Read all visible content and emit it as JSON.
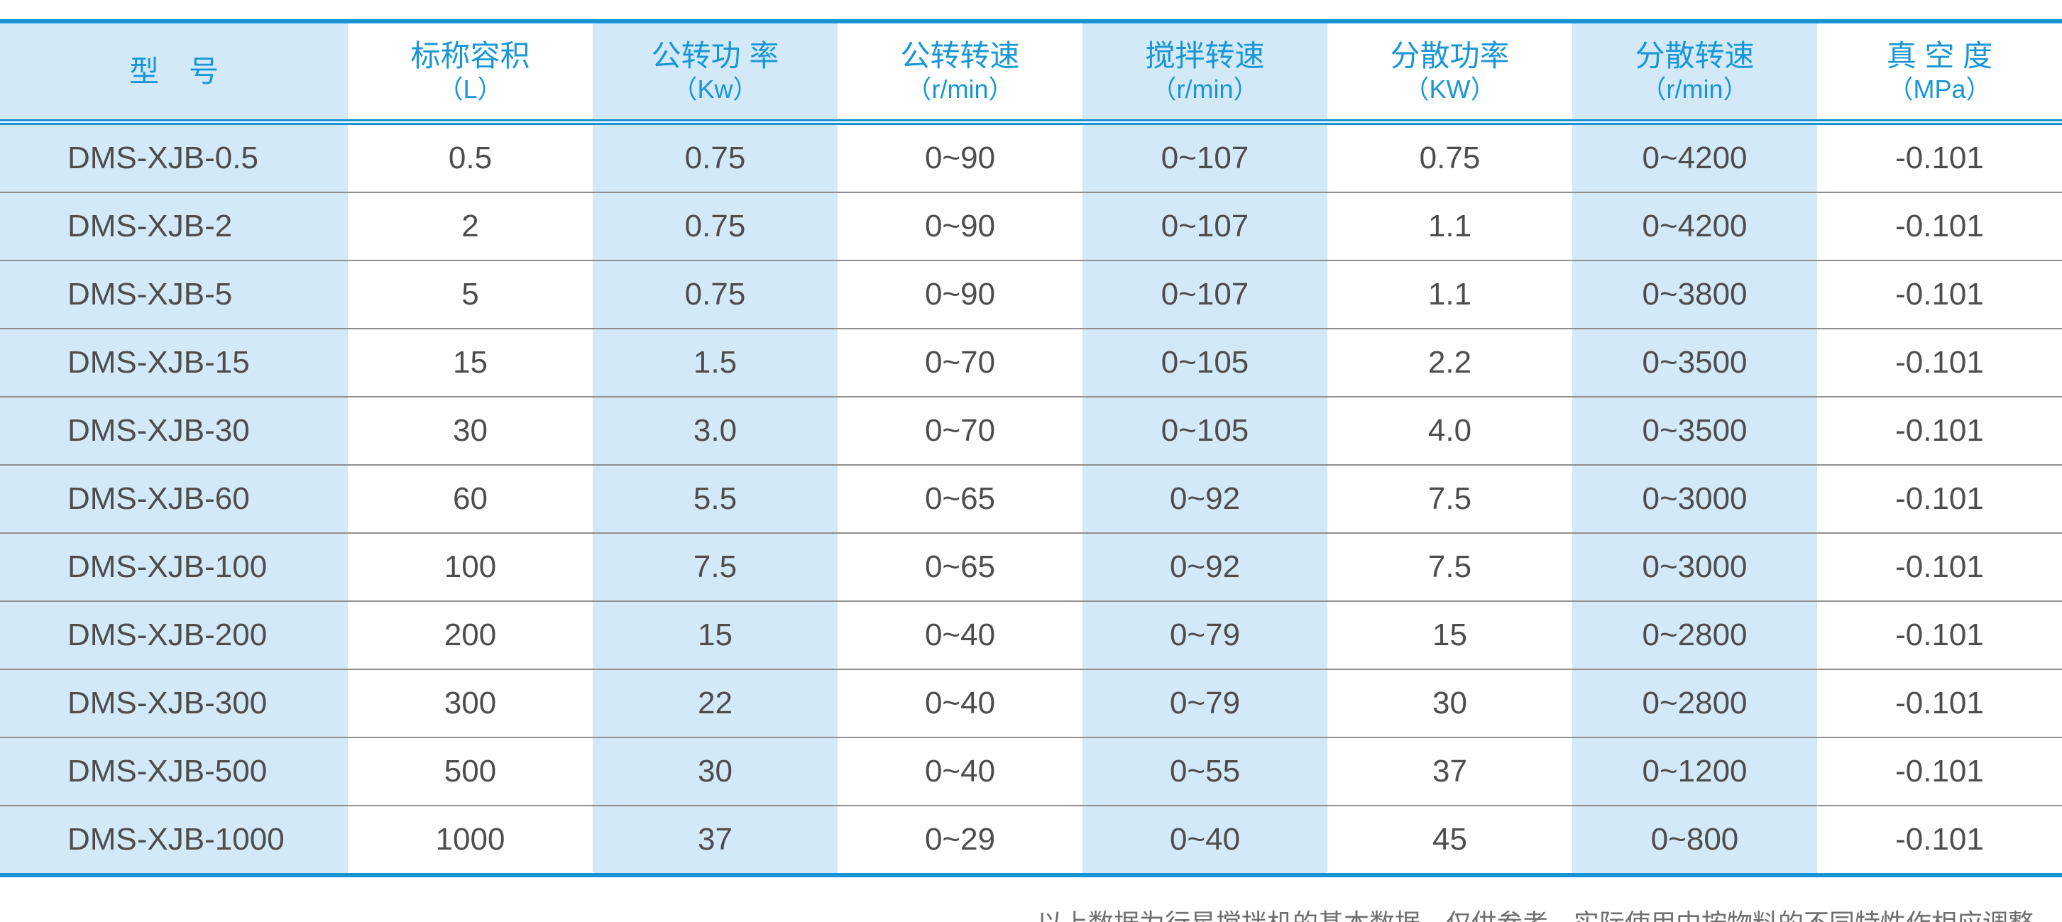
{
  "table": {
    "columns": [
      {
        "label": "型　号",
        "unit": ""
      },
      {
        "label": "标称容积",
        "unit": "（L）"
      },
      {
        "label": "公转功 率",
        "unit": "（Kw）"
      },
      {
        "label": "公转转速",
        "unit": "（r/min）"
      },
      {
        "label": "搅拌转速",
        "unit": "（r/min）"
      },
      {
        "label": "分散功率",
        "unit": "（KW）"
      },
      {
        "label": "分散转速",
        "unit": "（r/min）"
      },
      {
        "label": "真 空 度",
        "unit": "（MPa）"
      }
    ],
    "rows": [
      [
        "DMS-XJB-0.5",
        "0.5",
        "0.75",
        "0~90",
        "0~107",
        "0.75",
        "0~4200",
        "-0.101"
      ],
      [
        "DMS-XJB-2",
        "2",
        "0.75",
        "0~90",
        "0~107",
        "1.1",
        "0~4200",
        "-0.101"
      ],
      [
        "DMS-XJB-5",
        "5",
        "0.75",
        "0~90",
        "0~107",
        "1.1",
        "0~3800",
        "-0.101"
      ],
      [
        "DMS-XJB-15",
        "15",
        "1.5",
        "0~70",
        "0~105",
        "2.2",
        "0~3500",
        "-0.101"
      ],
      [
        "DMS-XJB-30",
        "30",
        "3.0",
        "0~70",
        "0~105",
        "4.0",
        "0~3500",
        "-0.101"
      ],
      [
        "DMS-XJB-60",
        "60",
        "5.5",
        "0~65",
        "0~92",
        "7.5",
        "0~3000",
        "-0.101"
      ],
      [
        "DMS-XJB-100",
        "100",
        "7.5",
        "0~65",
        "0~92",
        "7.5",
        "0~3000",
        "-0.101"
      ],
      [
        "DMS-XJB-200",
        "200",
        "15",
        "0~40",
        "0~79",
        "15",
        "0~2800",
        "-0.101"
      ],
      [
        "DMS-XJB-300",
        "300",
        "22",
        "0~40",
        "0~79",
        "30",
        "0~2800",
        "-0.101"
      ],
      [
        "DMS-XJB-500",
        "500",
        "30",
        "0~40",
        "0~55",
        "37",
        "0~1200",
        "-0.101"
      ],
      [
        "DMS-XJB-1000",
        "1000",
        "37",
        "0~29",
        "0~40",
        "45",
        "0~800",
        "-0.101"
      ]
    ]
  },
  "footnote": {
    "text": "以上数据为行星搅拌机的基本数据，仅供参考，实际使用中按物料的不同特性作相应调整。"
  },
  "colors": {
    "accent_blue_line": "#1a93d4",
    "header_text_blue": "#1896d6",
    "shaded_column_blue": "#d3e9f8",
    "body_text_gray": "#4d4d4d",
    "row_separator_gray": "#8f8f8f",
    "footnote_gray": "#6f6f6f"
  }
}
